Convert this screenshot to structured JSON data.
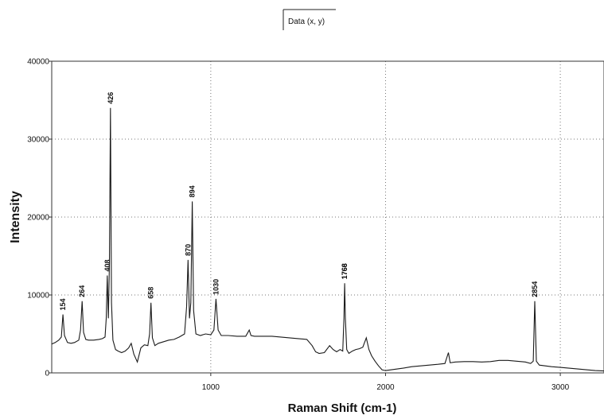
{
  "chart_data": {
    "type": "line",
    "legend": "Data (x, y)",
    "legend_position": "top-center",
    "xlabel": "Raman Shift (cm-1)",
    "ylabel": "Intensity",
    "xlim": [
      90,
      3250
    ],
    "ylim": [
      0,
      40000
    ],
    "grid": true,
    "x_ticks": [
      1000,
      2000,
      3000
    ],
    "y_ticks": [
      0,
      10000,
      20000,
      30000,
      40000
    ],
    "peak_labels": [
      "154",
      "264",
      "408",
      "426",
      "658",
      "870",
      "894",
      "1030",
      "1766",
      "1768",
      "2854"
    ],
    "series": [
      {
        "x": [
          90,
          110,
          130,
          145,
          154,
          163,
          180,
          200,
          220,
          245,
          255,
          264,
          272,
          285,
          300,
          330,
          360,
          380,
          395,
          402,
          408,
          414,
          420,
          426,
          432,
          440,
          455,
          470,
          490,
          510,
          530,
          545,
          560,
          580,
          600,
          620,
          640,
          650,
          658,
          666,
          680,
          700,
          730,
          760,
          790,
          820,
          850,
          862,
          870,
          878,
          886,
          894,
          902,
          915,
          940,
          970,
          1000,
          1018,
          1030,
          1042,
          1060,
          1100,
          1150,
          1200,
          1220,
          1230,
          1250,
          1300,
          1350,
          1400,
          1450,
          1500,
          1550,
          1580,
          1600,
          1620,
          1650,
          1680,
          1700,
          1720,
          1740,
          1755,
          1762,
          1766,
          1770,
          1778,
          1790,
          1810,
          1830,
          1850,
          1870,
          1890,
          1905,
          1920,
          1940,
          1960,
          1980,
          2000,
          2050,
          2100,
          2150,
          2200,
          2250,
          2300,
          2340,
          2360,
          2370,
          2400,
          2450,
          2500,
          2550,
          2600,
          2650,
          2700,
          2750,
          2800,
          2830,
          2845,
          2854,
          2863,
          2880,
          2950,
          3000,
          3050,
          3100,
          3150,
          3200,
          3250
        ],
        "y": [
          3700,
          3900,
          4200,
          4600,
          7500,
          4800,
          3900,
          3800,
          3900,
          4200,
          5500,
          9200,
          5200,
          4300,
          4200,
          4200,
          4300,
          4400,
          4600,
          7000,
          12500,
          7000,
          14000,
          34000,
          9000,
          4200,
          3000,
          2800,
          2600,
          2800,
          3200,
          3800,
          2400,
          1400,
          3200,
          3600,
          3500,
          5000,
          9000,
          4500,
          3500,
          3800,
          4000,
          4200,
          4300,
          4600,
          5000,
          8500,
          14500,
          7000,
          9000,
          22000,
          8000,
          5000,
          4800,
          5000,
          4900,
          5500,
          9500,
          5500,
          4800,
          4800,
          4700,
          4700,
          5500,
          4800,
          4700,
          4700,
          4700,
          4600,
          4500,
          4400,
          4300,
          3500,
          2700,
          2500,
          2600,
          3500,
          3000,
          2700,
          3000,
          2800,
          7000,
          11500,
          7000,
          3000,
          2500,
          2800,
          3000,
          3100,
          3300,
          4500,
          3000,
          2200,
          1500,
          900,
          400,
          300,
          450,
          600,
          800,
          900,
          1000,
          1100,
          1200,
          2600,
          1300,
          1400,
          1450,
          1450,
          1400,
          1450,
          1600,
          1600,
          1500,
          1400,
          1200,
          1500,
          9200,
          1500,
          1000,
          800,
          700,
          600,
          500,
          400,
          300,
          250
        ]
      }
    ]
  }
}
